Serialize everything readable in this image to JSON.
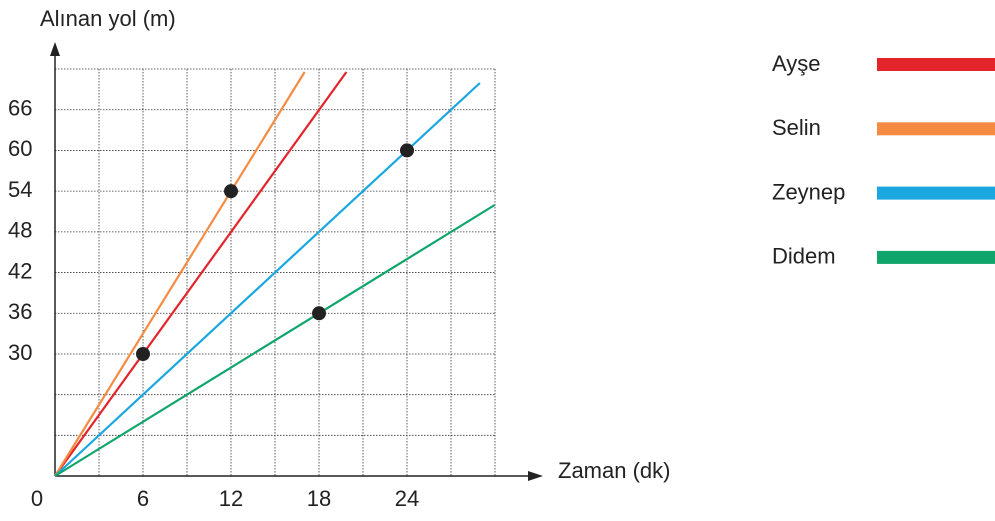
{
  "chart_data": {
    "type": "line",
    "y_label": "Alınan yol (m)",
    "x_label": "Zaman (dk)",
    "xlim": [
      0,
      30
    ],
    "xticks": [
      0,
      6,
      12,
      18,
      24
    ],
    "ylim": [
      0,
      72
    ],
    "yticks": [
      30,
      36,
      42,
      48,
      54,
      60,
      66
    ],
    "grid": true,
    "legend": "right",
    "series": [
      {
        "name": "Ayşe",
        "color": "#e3242b",
        "x": [
          0,
          6
        ],
        "values": [
          0,
          30
        ]
      },
      {
        "name": "Selin",
        "color": "#f58b42",
        "x": [
          0,
          12
        ],
        "values": [
          0,
          54
        ]
      },
      {
        "name": "Zeynep",
        "color": "#1aa7e0",
        "x": [
          0,
          24
        ],
        "values": [
          0,
          60
        ]
      },
      {
        "name": "Didem",
        "color": "#0fa56b",
        "x": [
          0,
          18
        ],
        "values": [
          0,
          36
        ]
      }
    ]
  }
}
